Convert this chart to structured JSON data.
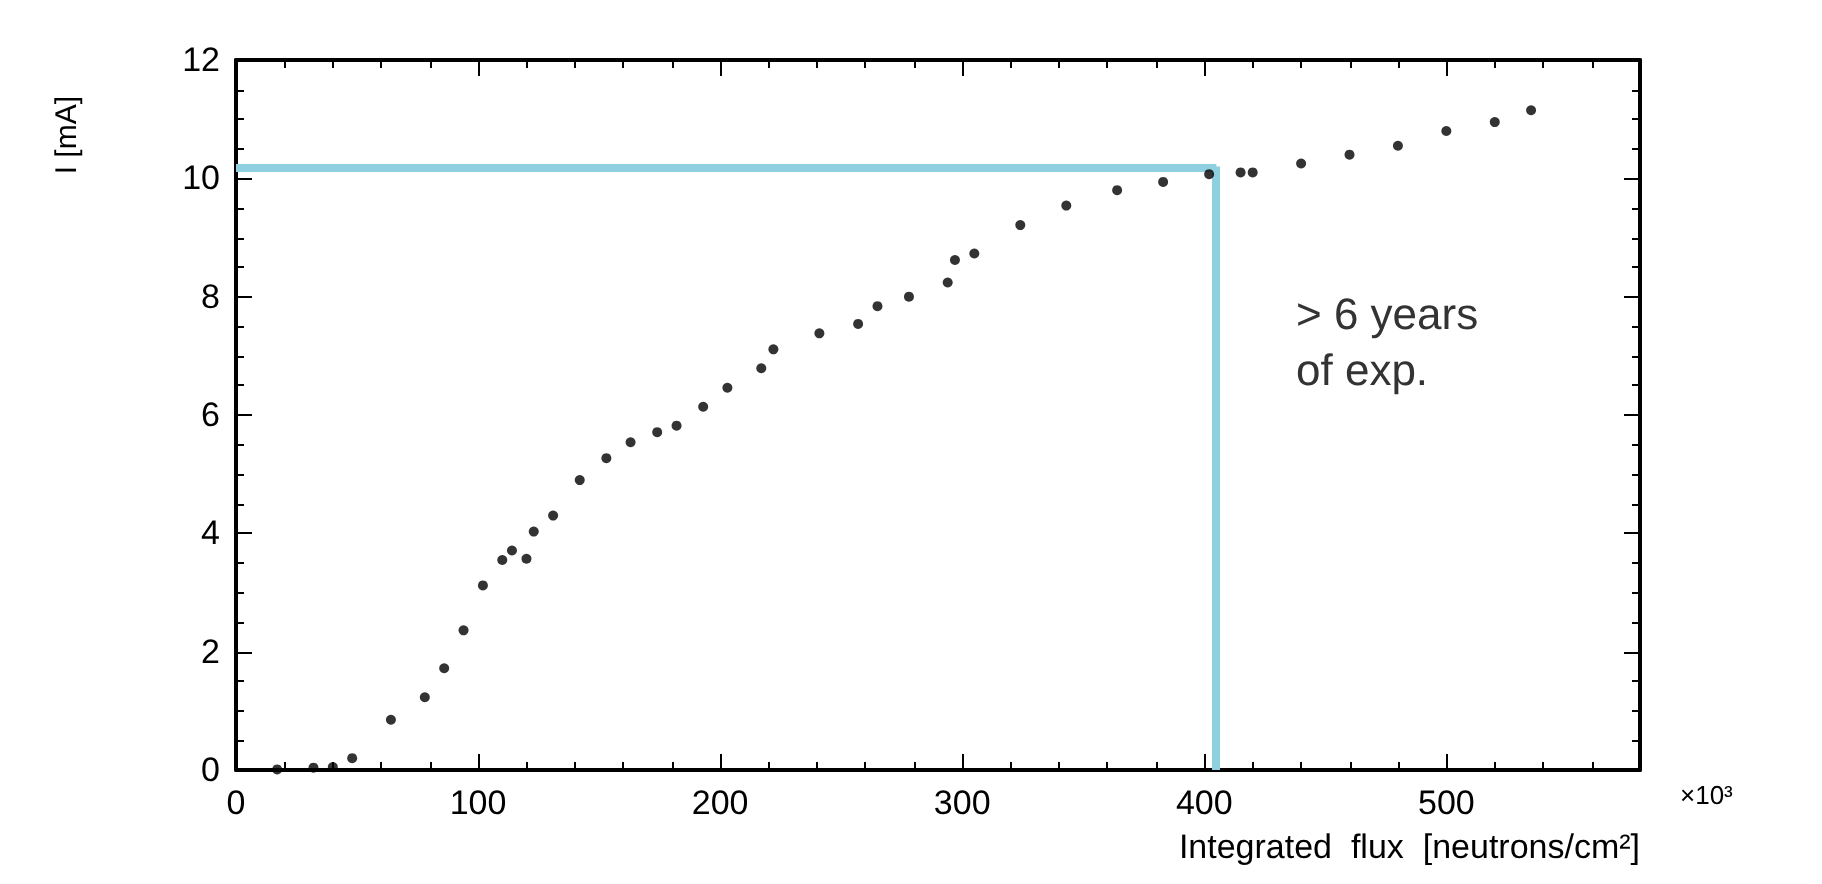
{
  "chart_data": {
    "type": "scatter",
    "xlabel": "Integrated  flux  [neutrons/cm²]",
    "ylabel": "I [mA]",
    "x": [
      17,
      32,
      40,
      48,
      64,
      78,
      86,
      94,
      102,
      110,
      114,
      120,
      123,
      131,
      142,
      153,
      163,
      174,
      182,
      193,
      203,
      217,
      222,
      241,
      257,
      265,
      278,
      294,
      297,
      305,
      324,
      343,
      364,
      383,
      402,
      415,
      420,
      440,
      460,
      480,
      500,
      520,
      535
    ],
    "values": [
      0.01,
      0.04,
      0.05,
      0.2,
      0.85,
      1.23,
      1.72,
      2.36,
      3.12,
      3.55,
      3.71,
      3.57,
      4.03,
      4.3,
      4.9,
      5.27,
      5.54,
      5.71,
      5.82,
      6.14,
      6.46,
      6.79,
      7.11,
      7.38,
      7.54,
      7.84,
      8.0,
      8.24,
      8.62,
      8.73,
      9.21,
      9.54,
      9.8,
      9.94,
      10.07,
      10.1,
      10.1,
      10.25,
      10.4,
      10.55,
      10.8,
      10.95,
      11.15
    ],
    "color": "#000000",
    "marker": "circle",
    "xlim": [
      0,
      580
    ],
    "xticks": [
      0,
      100,
      200,
      300,
      400,
      500
    ],
    "ylim": [
      0,
      12
    ],
    "yticks": [
      0,
      2,
      4,
      6,
      8,
      10,
      12
    ],
    "grid": false,
    "ref_lines": [
      {
        "axis": "y",
        "value": 10.2,
        "color": "#8fd0e0"
      },
      {
        "axis": "x",
        "value": 405,
        "color": "#8fd0e0"
      }
    ],
    "annotations": [
      "> 6 years\nof exp.",
      "×10³"
    ]
  }
}
